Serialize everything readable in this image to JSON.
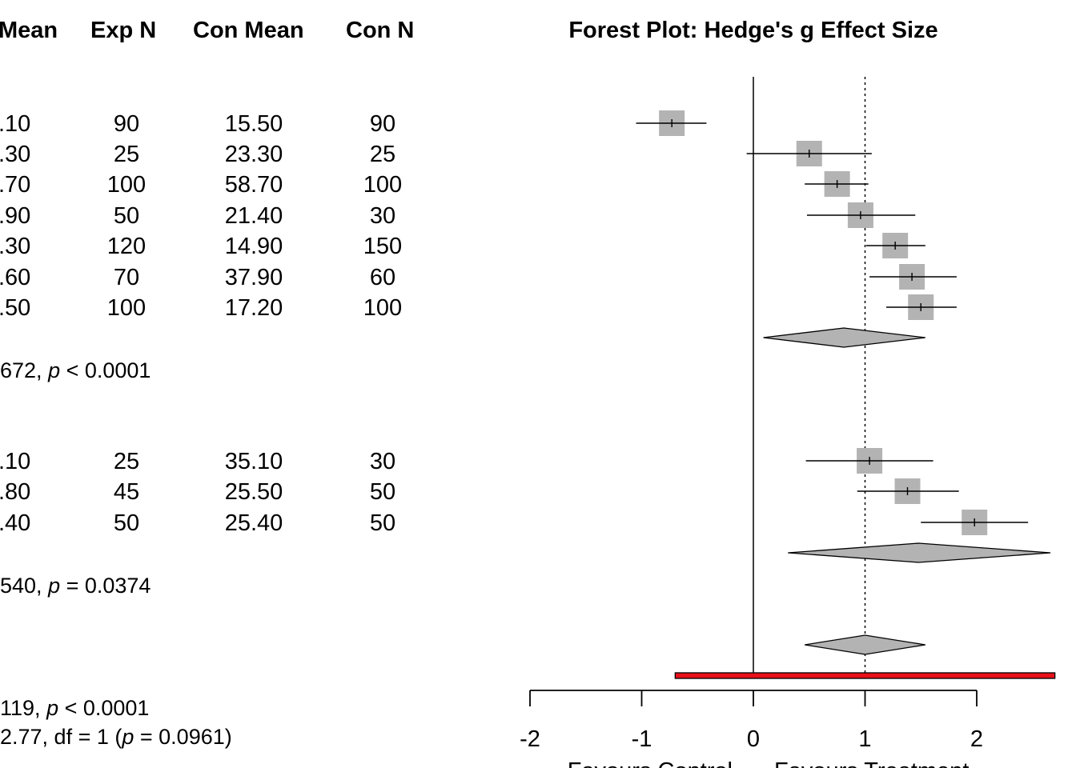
{
  "table": {
    "headers": {
      "exp_mean": "Mean",
      "exp_n": "Exp N",
      "con_mean": "Con Mean",
      "con_n": "Con N"
    },
    "rows": [
      {
        "exp_mean": ".10",
        "exp_n": "90",
        "con_mean": "15.50",
        "con_n": "90"
      },
      {
        "exp_mean": ".30",
        "exp_n": "25",
        "con_mean": "23.30",
        "con_n": "25"
      },
      {
        "exp_mean": ".70",
        "exp_n": "100",
        "con_mean": "58.70",
        "con_n": "100"
      },
      {
        "exp_mean": ".90",
        "exp_n": "50",
        "con_mean": "21.40",
        "con_n": "30"
      },
      {
        "exp_mean": ".30",
        "exp_n": "120",
        "con_mean": "14.90",
        "con_n": "150"
      },
      {
        "exp_mean": ".60",
        "exp_n": "70",
        "con_mean": "37.90",
        "con_n": "60"
      },
      {
        "exp_mean": ".50",
        "exp_n": "100",
        "con_mean": "17.20",
        "con_n": "100"
      },
      {
        "exp_mean": ".10",
        "exp_n": "25",
        "con_mean": "35.10",
        "con_n": "30"
      },
      {
        "exp_mean": ".80",
        "exp_n": "45",
        "con_mean": "25.50",
        "con_n": "50"
      },
      {
        "exp_mean": ".40",
        "exp_n": "50",
        "con_mean": "25.40",
        "con_n": "50"
      }
    ],
    "stats": {
      "group1": {
        "pre": "672, ",
        "p": "p",
        "post": " < 0.0001"
      },
      "group2": {
        "pre": "540, ",
        "p": "p",
        "post": " = 0.0374"
      },
      "overall": {
        "pre": "119, ",
        "p": "p",
        "post": " < 0.0001"
      },
      "subgroup_test": {
        "pre": "2.77, df = 1 (",
        "p": "p",
        "post": " = 0.0961)"
      }
    }
  },
  "chart_data": {
    "type": "forest",
    "title": "Forest Plot: Hedge's g Effect Size",
    "xlim": [
      -2,
      2
    ],
    "ticks": [
      -2,
      -1,
      0,
      1,
      2
    ],
    "tick_labels": [
      "-2",
      "-1",
      "0",
      "1",
      "2"
    ],
    "null_line": 0,
    "reference_line": 1,
    "xlabel_left": "Favours Control",
    "xlabel_right": "Favours Treatment",
    "studies": [
      {
        "est": -0.73,
        "lo": -1.05,
        "hi": -0.42,
        "weight": 1.0
      },
      {
        "est": 0.5,
        "lo": -0.06,
        "hi": 1.06,
        "weight": 1.0
      },
      {
        "est": 0.75,
        "lo": 0.46,
        "hi": 1.03,
        "weight": 1.0
      },
      {
        "est": 0.96,
        "lo": 0.48,
        "hi": 1.45,
        "weight": 1.0
      },
      {
        "est": 1.27,
        "lo": 1.01,
        "hi": 1.54,
        "weight": 1.0
      },
      {
        "est": 1.42,
        "lo": 1.04,
        "hi": 1.82,
        "weight": 1.0
      },
      {
        "est": 1.5,
        "lo": 1.19,
        "hi": 1.82,
        "weight": 1.0
      },
      {
        "est": 1.04,
        "lo": 0.47,
        "hi": 1.61,
        "weight": 1.0
      },
      {
        "est": 1.38,
        "lo": 0.93,
        "hi": 1.84,
        "weight": 1.0
      },
      {
        "est": 1.98,
        "lo": 1.5,
        "hi": 2.46,
        "weight": 1.0
      }
    ],
    "summaries": [
      {
        "est": 0.81,
        "lo": 0.09,
        "hi": 1.54
      },
      {
        "est": 1.48,
        "lo": 0.31,
        "hi": 2.66
      },
      {
        "est": 1.0,
        "lo": 0.46,
        "hi": 1.54
      }
    ],
    "prediction_interval": {
      "lo": -0.7,
      "hi": 2.7
    },
    "colors": {
      "box": "#b3b3b3",
      "diamond": "#b3b3b3",
      "prediction_bar": "#e8101a",
      "line": "#000000"
    }
  }
}
